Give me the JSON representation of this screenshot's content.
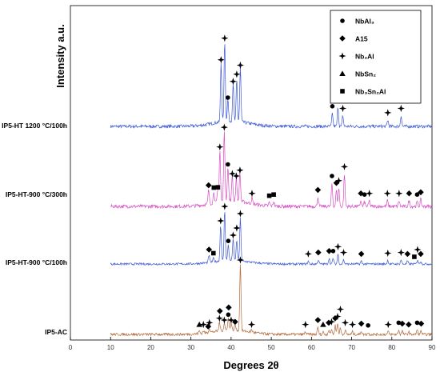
{
  "chart_data": {
    "type": "line",
    "title": "",
    "xlabel": "Degrees 2θ",
    "ylabel": "Intensity a.u.",
    "xlim": [
      0,
      90
    ],
    "x_ticks": [
      0,
      10,
      20,
      30,
      40,
      50,
      60,
      70,
      80,
      90
    ],
    "grid": false,
    "legend_position": "top-right",
    "legend": [
      {
        "marker": "circle",
        "label": "NbAl₃"
      },
      {
        "marker": "diamond",
        "label": "A15"
      },
      {
        "marker": "cross",
        "label": "Nb₂Al"
      },
      {
        "marker": "triangle",
        "label": "NbSn₂"
      },
      {
        "marker": "square",
        "label": "Nb₃Sn₂Al"
      }
    ],
    "series": [
      {
        "name": "IP5-HT 1200 °C/100h",
        "color": "#3b57d6",
        "peaks": [
          {
            "x": 37.5,
            "h": 0.55
          },
          {
            "x": 38.4,
            "h": 0.75
          },
          {
            "x": 39.2,
            "h": 0.2
          },
          {
            "x": 40.5,
            "h": 0.35
          },
          {
            "x": 41.4,
            "h": 0.38
          },
          {
            "x": 42.3,
            "h": 0.5
          },
          {
            "x": 65.2,
            "h": 0.12
          },
          {
            "x": 66.6,
            "h": 0.18
          },
          {
            "x": 67.8,
            "h": 0.1
          },
          {
            "x": 79.0,
            "h": 0.06
          },
          {
            "x": 82.3,
            "h": 0.1
          }
        ],
        "markers": [
          {
            "x": 37.5,
            "type": "cross"
          },
          {
            "x": 38.4,
            "type": "cross"
          },
          {
            "x": 39.2,
            "type": "circle"
          },
          {
            "x": 40.5,
            "type": "cross"
          },
          {
            "x": 41.4,
            "type": "cross"
          },
          {
            "x": 42.3,
            "type": "cross"
          },
          {
            "x": 65.2,
            "type": "circle"
          },
          {
            "x": 66.6,
            "type": "cross"
          },
          {
            "x": 67.8,
            "type": "cross"
          },
          {
            "x": 79.0,
            "type": "cross"
          },
          {
            "x": 82.3,
            "type": "cross"
          }
        ]
      },
      {
        "name": "IP5-HT-900 °C/300h",
        "color": "#d64fc2",
        "peaks": [
          {
            "x": 34.4,
            "h": 0.12
          },
          {
            "x": 35.7,
            "h": 0.1
          },
          {
            "x": 36.7,
            "h": 0.1
          },
          {
            "x": 37.2,
            "h": 0.45
          },
          {
            "x": 38.3,
            "h": 0.62
          },
          {
            "x": 39.2,
            "h": 0.3
          },
          {
            "x": 40.3,
            "h": 0.22
          },
          {
            "x": 41.3,
            "h": 0.2
          },
          {
            "x": 42.2,
            "h": 0.25
          },
          {
            "x": 45.2,
            "h": 0.05
          },
          {
            "x": 49.5,
            "h": 0.03
          },
          {
            "x": 50.6,
            "h": 0.04
          },
          {
            "x": 61.6,
            "h": 0.08
          },
          {
            "x": 65.1,
            "h": 0.2
          },
          {
            "x": 66.2,
            "h": 0.14
          },
          {
            "x": 66.8,
            "h": 0.16
          },
          {
            "x": 68.2,
            "h": 0.28
          },
          {
            "x": 72.3,
            "h": 0.05
          },
          {
            "x": 73.2,
            "h": 0.04
          },
          {
            "x": 74.4,
            "h": 0.05
          },
          {
            "x": 78.9,
            "h": 0.05
          },
          {
            "x": 81.8,
            "h": 0.05
          },
          {
            "x": 84.3,
            "h": 0.05
          },
          {
            "x": 86.3,
            "h": 0.04
          },
          {
            "x": 87.2,
            "h": 0.06
          }
        ],
        "markers": [
          {
            "x": 34.4,
            "type": "diamond"
          },
          {
            "x": 35.7,
            "type": "square"
          },
          {
            "x": 36.7,
            "type": "square"
          },
          {
            "x": 37.2,
            "type": "cross"
          },
          {
            "x": 38.3,
            "type": "cross"
          },
          {
            "x": 39.2,
            "type": "circle"
          },
          {
            "x": 40.3,
            "type": "cross"
          },
          {
            "x": 41.3,
            "type": "cross"
          },
          {
            "x": 42.2,
            "type": "cross"
          },
          {
            "x": 45.2,
            "type": "cross"
          },
          {
            "x": 49.5,
            "type": "square"
          },
          {
            "x": 50.6,
            "type": "square"
          },
          {
            "x": 61.6,
            "type": "diamond"
          },
          {
            "x": 65.1,
            "type": "circle"
          },
          {
            "x": 66.2,
            "type": "diamond"
          },
          {
            "x": 66.8,
            "type": "cross"
          },
          {
            "x": 68.2,
            "type": "cross"
          },
          {
            "x": 72.3,
            "type": "diamond"
          },
          {
            "x": 73.2,
            "type": "circle"
          },
          {
            "x": 74.4,
            "type": "cross"
          },
          {
            "x": 78.9,
            "type": "cross"
          },
          {
            "x": 81.8,
            "type": "cross"
          },
          {
            "x": 84.3,
            "type": "diamond"
          },
          {
            "x": 86.3,
            "type": "circle"
          },
          {
            "x": 87.2,
            "type": "diamond"
          }
        ]
      },
      {
        "name": "IP5-HT-900 °C/100h",
        "color": "#3b57d6",
        "peaks": [
          {
            "x": 34.5,
            "h": 0.1
          },
          {
            "x": 35.6,
            "h": 0.05
          },
          {
            "x": 37.4,
            "h": 0.5
          },
          {
            "x": 38.4,
            "h": 0.7
          },
          {
            "x": 39.3,
            "h": 0.22
          },
          {
            "x": 40.5,
            "h": 0.3
          },
          {
            "x": 41.4,
            "h": 0.28
          },
          {
            "x": 42.3,
            "h": 0.6
          },
          {
            "x": 59.2,
            "h": 0.04
          },
          {
            "x": 61.7,
            "h": 0.06
          },
          {
            "x": 64.4,
            "h": 0.08
          },
          {
            "x": 65.4,
            "h": 0.08
          },
          {
            "x": 66.6,
            "h": 0.14
          },
          {
            "x": 68.0,
            "h": 0.06
          },
          {
            "x": 72.4,
            "h": 0.04
          },
          {
            "x": 79.0,
            "h": 0.05
          },
          {
            "x": 82.3,
            "h": 0.06
          },
          {
            "x": 83.9,
            "h": 0.04
          },
          {
            "x": 86.4,
            "h": 0.06
          },
          {
            "x": 87.2,
            "h": 0.04
          }
        ],
        "markers": [
          {
            "x": 34.5,
            "type": "diamond"
          },
          {
            "x": 35.6,
            "type": "square"
          },
          {
            "x": 37.4,
            "type": "cross"
          },
          {
            "x": 38.4,
            "type": "cross"
          },
          {
            "x": 39.3,
            "type": "circle"
          },
          {
            "x": 40.5,
            "type": "cross"
          },
          {
            "x": 41.4,
            "type": "cross"
          },
          {
            "x": 42.3,
            "type": "cross"
          },
          {
            "x": 59.2,
            "type": "cross"
          },
          {
            "x": 61.7,
            "type": "diamond"
          },
          {
            "x": 64.4,
            "type": "diamond"
          },
          {
            "x": 65.4,
            "type": "circle"
          },
          {
            "x": 66.6,
            "type": "cross"
          },
          {
            "x": 68.0,
            "type": "cross"
          },
          {
            "x": 72.4,
            "type": "diamond"
          },
          {
            "x": 79.0,
            "type": "cross"
          },
          {
            "x": 82.3,
            "type": "cross"
          },
          {
            "x": 83.9,
            "type": "diamond"
          },
          {
            "x": 85.6,
            "type": "square"
          },
          {
            "x": 86.4,
            "type": "cross"
          },
          {
            "x": 87.2,
            "type": "diamond"
          }
        ]
      },
      {
        "name": "IP5-AC",
        "color": "#b06a3b",
        "peaks": [
          {
            "x": 32.1,
            "h": 0.03
          },
          {
            "x": 33.1,
            "h": 0.03
          },
          {
            "x": 34.6,
            "h": 0.05
          },
          {
            "x": 37.1,
            "h": 0.1
          },
          {
            "x": 38.3,
            "h": 0.08
          },
          {
            "x": 39.3,
            "h": 0.14
          },
          {
            "x": 40.0,
            "h": 0.08
          },
          {
            "x": 41.0,
            "h": 0.06
          },
          {
            "x": 42.3,
            "h": 0.75
          },
          {
            "x": 45.1,
            "h": 0.03
          },
          {
            "x": 58.5,
            "h": 0.03
          },
          {
            "x": 61.6,
            "h": 0.08
          },
          {
            "x": 62.9,
            "h": 0.03
          },
          {
            "x": 64.3,
            "h": 0.05
          },
          {
            "x": 65.0,
            "h": 0.06
          },
          {
            "x": 65.9,
            "h": 0.1
          },
          {
            "x": 66.5,
            "h": 0.12
          },
          {
            "x": 67.2,
            "h": 0.07
          },
          {
            "x": 68.4,
            "h": 0.05
          },
          {
            "x": 70.2,
            "h": 0.03
          },
          {
            "x": 72.4,
            "h": 0.04
          },
          {
            "x": 74.1,
            "h": 0.02
          },
          {
            "x": 79.1,
            "h": 0.03
          },
          {
            "x": 81.7,
            "h": 0.05
          },
          {
            "x": 82.6,
            "h": 0.04
          },
          {
            "x": 84.2,
            "h": 0.03
          },
          {
            "x": 86.3,
            "h": 0.05
          },
          {
            "x": 87.3,
            "h": 0.04
          }
        ],
        "markers": [
          {
            "x": 32.1,
            "type": "triangle"
          },
          {
            "x": 33.1,
            "type": "cross"
          },
          {
            "x": 34.6,
            "type": "cross"
          },
          {
            "x": 34.3,
            "type": "diamond"
          },
          {
            "x": 37.1,
            "type": "cross"
          },
          {
            "x": 37.2,
            "type": "diamond"
          },
          {
            "x": 38.3,
            "type": "cross"
          },
          {
            "x": 39.3,
            "type": "circle"
          },
          {
            "x": 39.4,
            "type": "diamond"
          },
          {
            "x": 40.0,
            "type": "cross"
          },
          {
            "x": 41.0,
            "type": "diamond"
          },
          {
            "x": 42.3,
            "type": "cross"
          },
          {
            "x": 45.1,
            "type": "cross"
          },
          {
            "x": 58.5,
            "type": "cross"
          },
          {
            "x": 61.6,
            "type": "diamond"
          },
          {
            "x": 62.9,
            "type": "triangle"
          },
          {
            "x": 64.3,
            "type": "diamond"
          },
          {
            "x": 65.0,
            "type": "cross"
          },
          {
            "x": 65.9,
            "type": "diamond"
          },
          {
            "x": 66.5,
            "type": "cross"
          },
          {
            "x": 67.2,
            "type": "cross"
          },
          {
            "x": 68.4,
            "type": "cross"
          },
          {
            "x": 70.2,
            "type": "cross"
          },
          {
            "x": 72.4,
            "type": "diamond"
          },
          {
            "x": 74.1,
            "type": "circle"
          },
          {
            "x": 79.1,
            "type": "cross"
          },
          {
            "x": 81.7,
            "type": "circle"
          },
          {
            "x": 82.6,
            "type": "diamond"
          },
          {
            "x": 84.2,
            "type": "diamond"
          },
          {
            "x": 86.3,
            "type": "circle"
          },
          {
            "x": 87.3,
            "type": "diamond"
          }
        ]
      }
    ]
  }
}
